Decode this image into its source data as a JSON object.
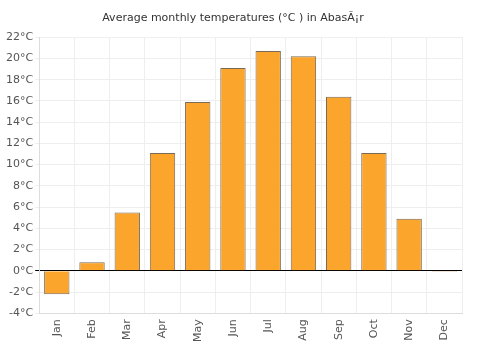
{
  "chart_data": {
    "type": "bar",
    "title": "Average monthly temperatures (°C ) in AbasÃ¡r",
    "categories": [
      "Jan",
      "Feb",
      "Mar",
      "Apr",
      "May",
      "Jun",
      "Jul",
      "Aug",
      "Sep",
      "Oct",
      "Nov",
      "Dec"
    ],
    "values": [
      -2.2,
      0.8,
      5.5,
      11.1,
      15.9,
      19.1,
      20.7,
      20.2,
      16.4,
      11.1,
      4.9,
      -0.1
    ],
    "color": "#fba52c",
    "ylim": [
      -4,
      22
    ],
    "yticks": [
      {
        "value": -4,
        "label": "-4°C"
      },
      {
        "value": -2,
        "label": "-2°C"
      },
      {
        "value": 0,
        "label": "0°C"
      },
      {
        "value": 2,
        "label": "2°C"
      },
      {
        "value": 4,
        "label": "4°C"
      },
      {
        "value": 6,
        "label": "6°C"
      },
      {
        "value": 8,
        "label": "8°C"
      },
      {
        "value": 10,
        "label": "10°C"
      },
      {
        "value": 12,
        "label": "12°C"
      },
      {
        "value": 14,
        "label": "14°C"
      },
      {
        "value": 16,
        "label": "16°C"
      },
      {
        "value": 18,
        "label": "18°C"
      },
      {
        "value": 20,
        "label": "20°C"
      },
      {
        "value": 22,
        "label": "22°C"
      }
    ],
    "grid": true
  }
}
